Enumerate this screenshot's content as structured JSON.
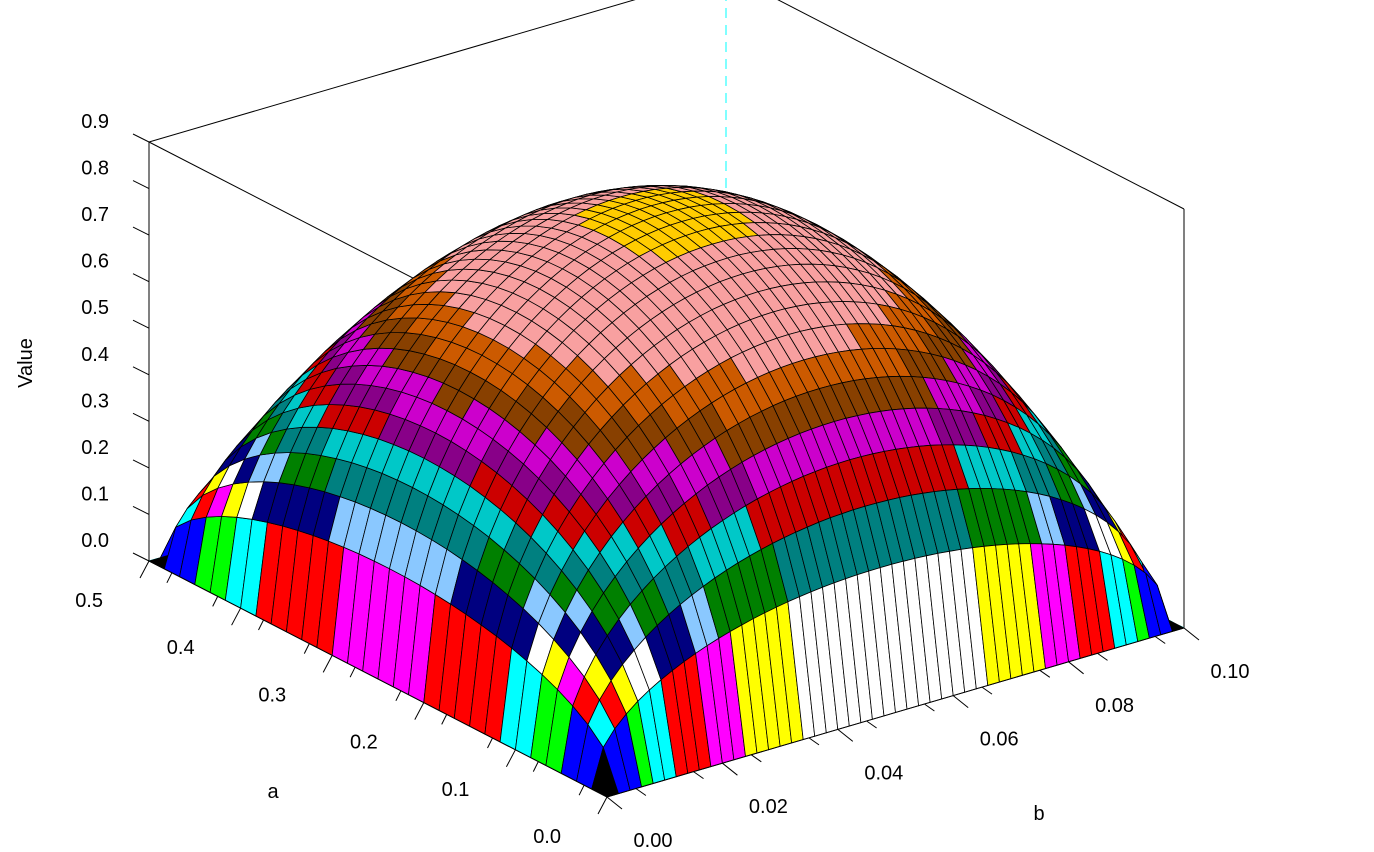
{
  "chart_data": {
    "type": "surface3d",
    "title": "",
    "xlabel": "b",
    "ylabel": "a",
    "zlabel": "Value",
    "x_range": [
      0.0,
      0.1
    ],
    "y_range": [
      0.0,
      0.5
    ],
    "z_range": [
      0.0,
      0.9
    ],
    "x_ticks": [
      "0.00",
      "0.02",
      "0.04",
      "0.06",
      "0.08",
      "0.10"
    ],
    "y_ticks": [
      "0.0",
      "0.1",
      "0.2",
      "0.3",
      "0.4",
      "0.5"
    ],
    "z_ticks": [
      "0.0",
      "0.1",
      "0.2",
      "0.3",
      "0.4",
      "0.5",
      "0.6",
      "0.7",
      "0.8",
      "0.9"
    ],
    "grid": false,
    "surface": {
      "peak_value": 0.82,
      "peak_at": {
        "a": 0.25,
        "b": 0.05
      },
      "zero_at_edges": true,
      "grid_cells": [
        50,
        30
      ]
    },
    "color_bands": [
      {
        "from": 0.0,
        "to": 0.05,
        "color": "#000000"
      },
      {
        "from": 0.05,
        "to": 0.1,
        "color": "#0000ff"
      },
      {
        "from": 0.1,
        "to": 0.12,
        "color": "#00ff00"
      },
      {
        "from": 0.12,
        "to": 0.14,
        "color": "#00ffff"
      },
      {
        "from": 0.14,
        "to": 0.16,
        "color": "#ff0000"
      },
      {
        "from": 0.16,
        "to": 0.18,
        "color": "#ff00ff"
      },
      {
        "from": 0.18,
        "to": 0.2,
        "color": "#ffff00"
      },
      {
        "from": 0.2,
        "to": 0.23,
        "color": "#ffffff"
      },
      {
        "from": 0.23,
        "to": 0.27,
        "color": "#000080"
      },
      {
        "from": 0.27,
        "to": 0.3,
        "color": "#8ac8ff"
      },
      {
        "from": 0.3,
        "to": 0.34,
        "color": "#008000"
      },
      {
        "from": 0.34,
        "to": 0.38,
        "color": "#008080"
      },
      {
        "from": 0.38,
        "to": 0.42,
        "color": "#00c8c8"
      },
      {
        "from": 0.42,
        "to": 0.46,
        "color": "#cc0000"
      },
      {
        "from": 0.46,
        "to": 0.5,
        "color": "#880088"
      },
      {
        "from": 0.5,
        "to": 0.55,
        "color": "#cc00cc"
      },
      {
        "from": 0.55,
        "to": 0.6,
        "color": "#884000"
      },
      {
        "from": 0.6,
        "to": 0.66,
        "color": "#cc5a00"
      },
      {
        "from": 0.66,
        "to": 0.8,
        "color": "#f8a0a0"
      },
      {
        "from": 0.8,
        "to": 0.9,
        "color": "#ffcc00"
      }
    ],
    "floor_color": "#000000",
    "reference_line_color": "#00ffff"
  }
}
